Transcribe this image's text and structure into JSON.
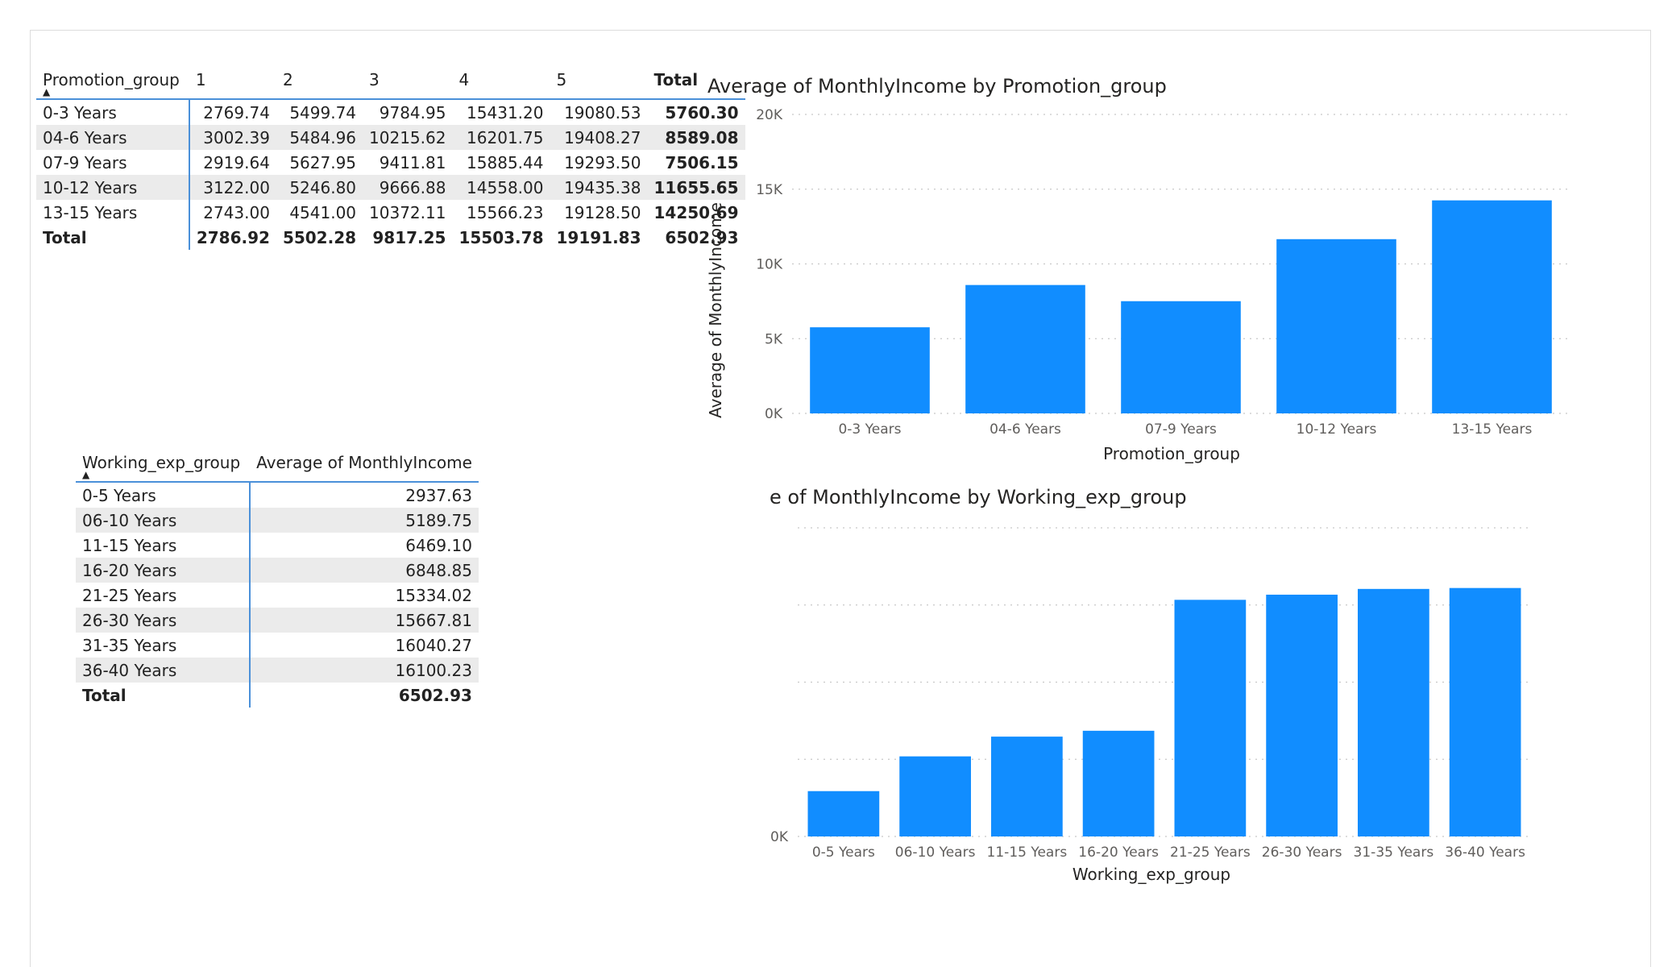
{
  "colors": {
    "bar": "#118DFF",
    "grid": "#c8c8c8",
    "header_line": "#4a90d9",
    "stripe": "#ebebeb"
  },
  "promotion_table": {
    "row_header": "Promotion_group",
    "columns": [
      "1",
      "2",
      "3",
      "4",
      "5",
      "Total"
    ],
    "rows": [
      {
        "label": "0-3 Years",
        "values": [
          "2769.74",
          "5499.74",
          "9784.95",
          "15431.20",
          "19080.53",
          "5760.30"
        ]
      },
      {
        "label": "04-6 Years",
        "values": [
          "3002.39",
          "5484.96",
          "10215.62",
          "16201.75",
          "19408.27",
          "8589.08"
        ]
      },
      {
        "label": "07-9 Years",
        "values": [
          "2919.64",
          "5627.95",
          "9411.81",
          "15885.44",
          "19293.50",
          "7506.15"
        ]
      },
      {
        "label": "10-12 Years",
        "values": [
          "3122.00",
          "5246.80",
          "9666.88",
          "14558.00",
          "19435.38",
          "11655.65"
        ]
      },
      {
        "label": "13-15 Years",
        "values": [
          "2743.00",
          "4541.00",
          "10372.11",
          "15566.23",
          "19128.50",
          "14250.69"
        ]
      }
    ],
    "total": {
      "label": "Total",
      "values": [
        "2786.92",
        "5502.28",
        "9817.25",
        "15503.78",
        "19191.83",
        "6502.93"
      ]
    }
  },
  "working_table": {
    "headers": [
      "Working_exp_group",
      "Average of MonthlyIncome"
    ],
    "rows": [
      {
        "label": "0-5 Years",
        "value": "2937.63"
      },
      {
        "label": "06-10 Years",
        "value": "5189.75"
      },
      {
        "label": "11-15 Years",
        "value": "6469.10"
      },
      {
        "label": "16-20 Years",
        "value": "6848.85"
      },
      {
        "label": "21-25 Years",
        "value": "15334.02"
      },
      {
        "label": "26-30 Years",
        "value": "15667.81"
      },
      {
        "label": "31-35 Years",
        "value": "16040.27"
      },
      {
        "label": "36-40 Years",
        "value": "16100.23"
      }
    ],
    "total": {
      "label": "Total",
      "value": "6502.93"
    }
  },
  "chart_data": [
    {
      "type": "bar",
      "title": "Average of MonthlyIncome by Promotion_group",
      "xlabel": "Promotion_group",
      "ylabel": "Average of MonthlyIncome",
      "categories": [
        "0-3 Years",
        "04-6 Years",
        "07-9 Years",
        "10-12 Years",
        "13-15 Years"
      ],
      "values": [
        5760.3,
        8589.08,
        7506.15,
        11655.65,
        14250.69
      ],
      "ylim": [
        0,
        20000
      ],
      "yticks": [
        0,
        5000,
        10000,
        15000,
        20000
      ],
      "ytick_labels": [
        "0K",
        "5K",
        "10K",
        "15K",
        "20K"
      ],
      "grid": true
    },
    {
      "type": "bar",
      "title": "e of MonthlyIncome by Working_exp_group",
      "xlabel": "Working_exp_group",
      "categories": [
        "0-5 Years",
        "06-10 Years",
        "11-15 Years",
        "16-20 Years",
        "21-25 Years",
        "26-30 Years",
        "31-35 Years",
        "36-40 Years"
      ],
      "values": [
        2937.63,
        5189.75,
        6469.1,
        6848.85,
        15334.02,
        15667.81,
        16040.27,
        16100.23
      ],
      "ylim": [
        0,
        20000
      ],
      "yticks": [
        0,
        5000,
        10000,
        15000,
        20000
      ],
      "ytick_labels": [
        "0K",
        "",
        "",
        "",
        ""
      ],
      "grid": true
    }
  ]
}
